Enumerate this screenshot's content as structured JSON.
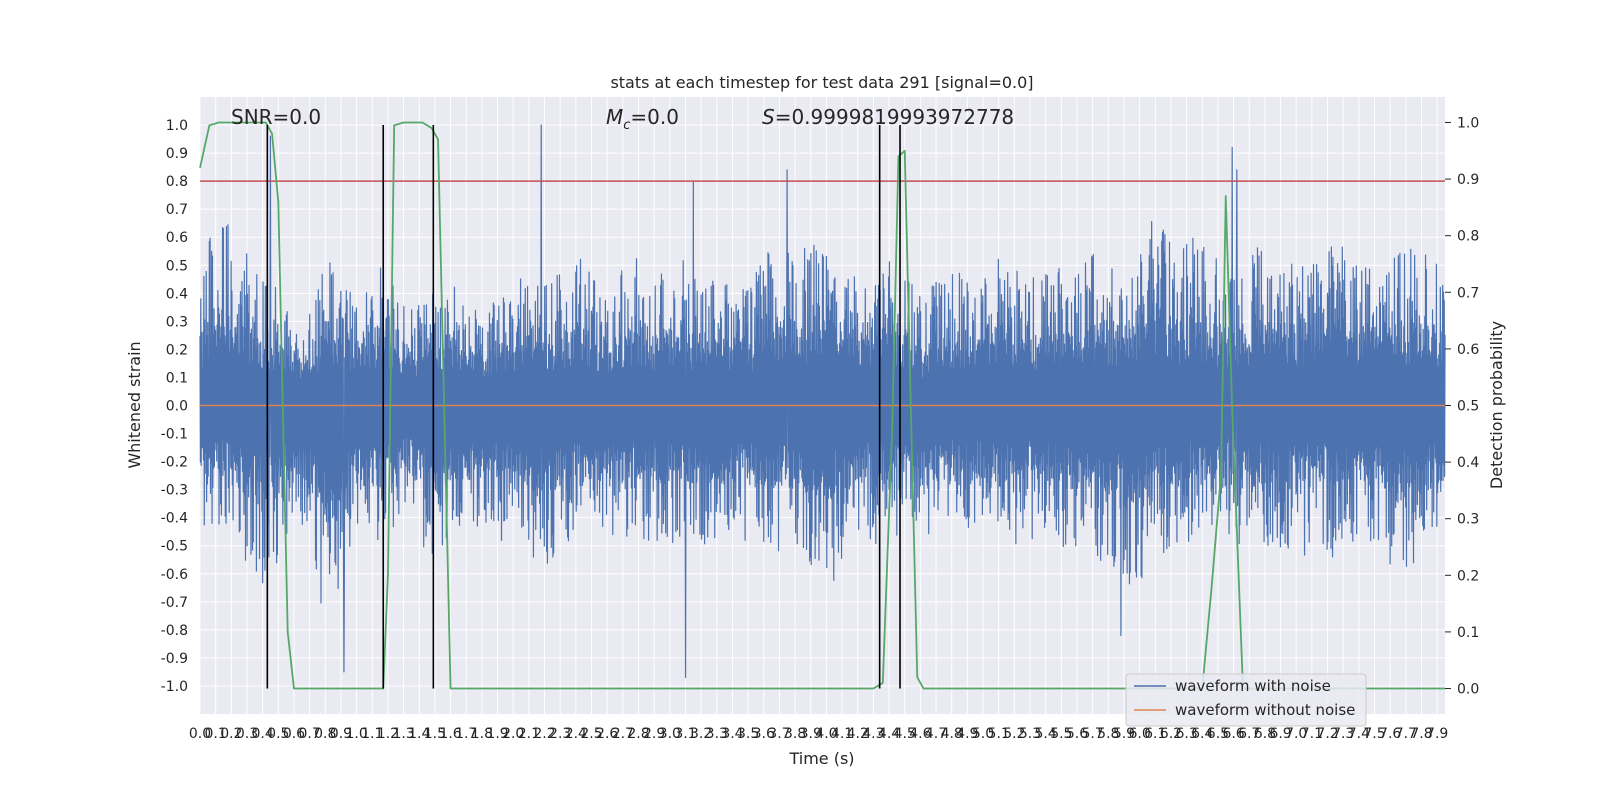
{
  "chart_data": {
    "type": "line",
    "title": "stats at each timestep for test data 291 [signal=0.0]",
    "xlabel": "Time (s)",
    "ylabel": "Whitened strain",
    "y2label": "Detection probability",
    "xlim": [
      0.0,
      7.95
    ],
    "ylim": [
      -1.1,
      1.1
    ],
    "y2lim": [
      -0.045,
      1.045
    ],
    "x_ticks": [
      "0.0",
      "0.1",
      "0.2",
      "0.3",
      "0.4",
      "0.5",
      "0.6",
      "0.7",
      "0.8",
      "0.9",
      "1.0",
      "1.1",
      "1.2",
      "1.3",
      "1.4",
      "1.5",
      "1.6",
      "1.7",
      "1.8",
      "1.9",
      "2.0",
      "2.1",
      "2.2",
      "2.3",
      "2.4",
      "2.5",
      "2.6",
      "2.7",
      "2.8",
      "2.9",
      "3.0",
      "3.1",
      "3.2",
      "3.3",
      "3.4",
      "3.5",
      "3.6",
      "3.7",
      "3.8",
      "3.9",
      "4.0",
      "4.1",
      "4.2",
      "4.3",
      "4.4",
      "4.5",
      "4.6",
      "4.7",
      "4.8",
      "4.9",
      "5.0",
      "5.1",
      "5.2",
      "5.3",
      "5.4",
      "5.5",
      "5.6",
      "5.7",
      "5.8",
      "5.9",
      "6.0",
      "6.1",
      "6.2",
      "6.3",
      "6.4",
      "6.5",
      "6.6",
      "6.7",
      "6.8",
      "6.9",
      "7.0",
      "7.1",
      "7.2",
      "7.3",
      "7.4",
      "7.5",
      "7.6",
      "7.7",
      "7.8",
      "7.9"
    ],
    "y_ticks": [
      "-1.0",
      "-0.9",
      "-0.8",
      "-0.7",
      "-0.6",
      "-0.5",
      "-0.4",
      "-0.3",
      "-0.2",
      "-0.1",
      "0.0",
      "0.1",
      "0.2",
      "0.3",
      "0.4",
      "0.5",
      "0.6",
      "0.7",
      "0.8",
      "0.9",
      "1.0"
    ],
    "y2_ticks": [
      "0.0",
      "0.1",
      "0.2",
      "0.3",
      "0.4",
      "0.5",
      "0.6",
      "0.7",
      "0.8",
      "0.9",
      "1.0"
    ],
    "threshold": 0.8,
    "threshold_color": "#c44e52",
    "detection_boundaries_s": [
      0.43,
      1.17,
      1.49,
      4.34,
      4.47
    ],
    "annotations": {
      "snr": "SNR=0.0",
      "mc_symbol": "M",
      "mc_sub": "c",
      "mc_value": "=0.0",
      "s_symbol": "S",
      "s_value": "=0.9999819993972778"
    },
    "series": [
      {
        "name": "waveform with noise",
        "color": "#4c72b0",
        "envelope_upper": [
          0.45,
          0.68,
          0.66,
          0.55,
          0.5,
          0.45,
          0.37,
          0.33,
          0.55,
          0.45,
          0.4,
          0.5,
          0.48,
          0.4,
          0.42,
          0.48,
          0.46,
          0.35,
          0.33,
          0.4,
          0.42,
          0.52,
          0.5,
          0.48,
          0.55,
          0.45,
          0.42,
          0.5,
          0.55,
          0.48,
          0.55,
          0.5,
          0.48,
          0.45,
          0.5,
          0.45,
          0.55,
          0.6,
          0.55,
          0.58,
          0.55,
          0.5,
          0.55,
          0.48,
          0.57,
          0.45,
          0.38,
          0.48,
          0.5,
          0.45,
          0.5,
          0.55,
          0.5,
          0.45,
          0.48,
          0.5,
          0.52,
          0.55,
          0.5,
          0.42,
          0.65,
          0.68,
          0.55,
          0.6,
          0.55,
          0.5,
          0.55,
          0.58,
          0.5,
          0.55,
          0.5,
          0.55,
          0.6,
          0.58,
          0.5,
          0.55,
          0.55,
          0.58,
          0.55,
          0.5
        ],
        "envelope_lower": [
          -0.52,
          -0.45,
          -0.48,
          -0.6,
          -0.65,
          -0.6,
          -0.45,
          -0.55,
          -0.8,
          -0.65,
          -0.5,
          -0.55,
          -0.45,
          -0.42,
          -0.5,
          -0.55,
          -0.5,
          -0.48,
          -0.45,
          -0.5,
          -0.48,
          -0.55,
          -0.6,
          -0.5,
          -0.52,
          -0.48,
          -0.5,
          -0.52,
          -0.48,
          -0.5,
          -0.5,
          -0.52,
          -0.5,
          -0.5,
          -0.48,
          -0.5,
          -0.55,
          -0.52,
          -0.55,
          -0.6,
          -0.65,
          -0.55,
          -0.5,
          -0.55,
          -0.48,
          -0.42,
          -0.45,
          -0.5,
          -0.48,
          -0.45,
          -0.5,
          -0.52,
          -0.5,
          -0.48,
          -0.5,
          -0.52,
          -0.5,
          -0.55,
          -0.6,
          -0.7,
          -0.6,
          -0.55,
          -0.5,
          -0.48,
          -0.5,
          -0.45,
          -0.5,
          -0.55,
          -0.5,
          -0.52,
          -0.55,
          -0.5,
          -0.55,
          -0.5,
          -0.52,
          -0.55,
          -0.6,
          -0.62,
          -0.55,
          -0.5
        ],
        "spikes": [
          [
            0.45,
            0.96
          ],
          [
            0.92,
            -0.95
          ],
          [
            2.18,
            1.0
          ],
          [
            3.15,
            0.8
          ],
          [
            3.1,
            -0.97
          ],
          [
            3.75,
            0.84
          ],
          [
            5.88,
            -0.82
          ],
          [
            6.59,
            0.92
          ],
          [
            6.62,
            0.84
          ]
        ]
      },
      {
        "name": "waveform without noise",
        "color": "#dd8452",
        "x": [
          0.0,
          7.95
        ],
        "y": [
          0.0,
          0.0
        ]
      },
      {
        "color": "#55a868",
        "axis": "right",
        "x": [
          0.0,
          0.06,
          0.12,
          0.18,
          0.24,
          0.3,
          0.36,
          0.42,
          0.46,
          0.5,
          0.56,
          0.6,
          1.0,
          1.17,
          1.2,
          1.24,
          1.3,
          1.36,
          1.42,
          1.48,
          1.52,
          1.6,
          2.0,
          3.0,
          4.0,
          4.3,
          4.36,
          4.42,
          4.46,
          4.5,
          4.58,
          4.62,
          5.0,
          6.0,
          6.4,
          6.46,
          6.52,
          6.55,
          6.59,
          6.66,
          6.7,
          7.0,
          7.95
        ],
        "y": [
          0.92,
          0.995,
          1.0,
          1.0,
          1.0,
          1.0,
          1.0,
          1.0,
          0.98,
          0.86,
          0.1,
          0.0,
          0.0,
          0.0,
          0.2,
          0.995,
          1.0,
          1.0,
          1.0,
          0.99,
          0.97,
          0.0,
          0.0,
          0.0,
          0.0,
          0.0,
          0.01,
          0.46,
          0.94,
          0.95,
          0.02,
          0.0,
          0.0,
          0.0,
          0.0,
          0.18,
          0.38,
          0.87,
          0.5,
          0.0,
          0.0,
          0.0,
          0.0
        ]
      }
    ],
    "legend": {
      "position": "lower-right",
      "entries": [
        "waveform with noise",
        "waveform without noise"
      ]
    },
    "grid": true
  }
}
